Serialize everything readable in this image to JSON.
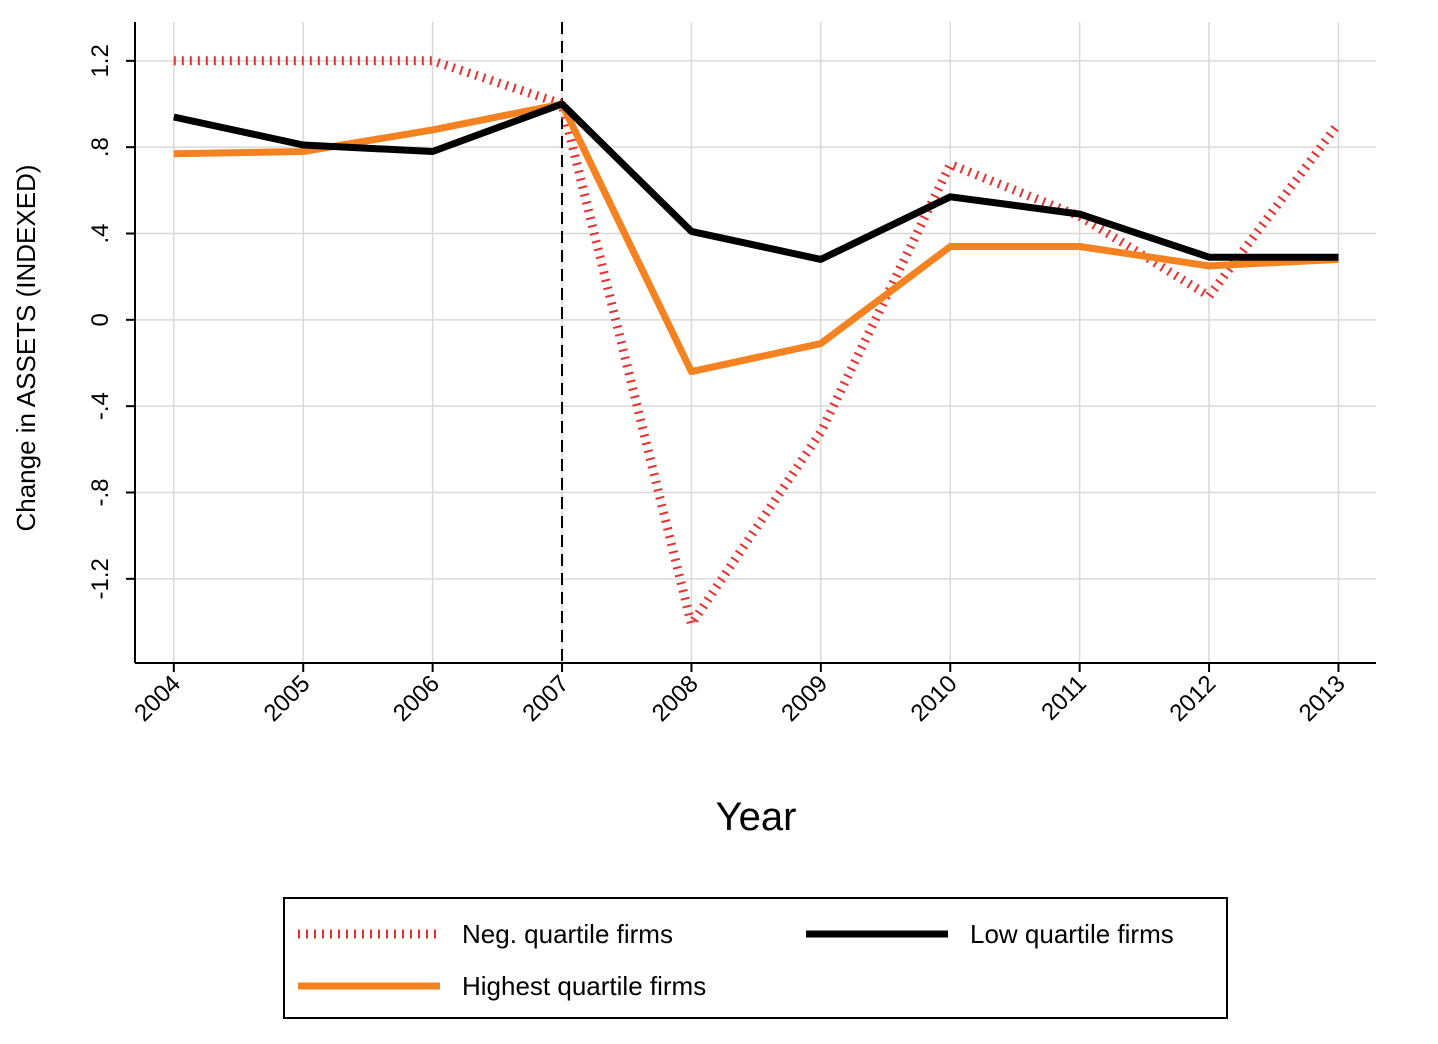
{
  "chart_data": {
    "type": "line",
    "title": "",
    "xlabel": "Year",
    "ylabel": "Change in ASSETS (INDEXED)",
    "x": [
      2004,
      2005,
      2006,
      2007,
      2008,
      2009,
      2010,
      2011,
      2012,
      2013
    ],
    "x_tick_labels": [
      "2004",
      "2005",
      "2006",
      "2007",
      "2008",
      "2009",
      "2010",
      "2011",
      "2012",
      "2013"
    ],
    "y_ticks": [
      1.2,
      0.8,
      0.4,
      0,
      -0.4,
      -0.8,
      -1.2
    ],
    "y_tick_labels": [
      "1.2",
      ".8",
      ".4",
      "0",
      "-.4",
      "-.8",
      "-1.2"
    ],
    "ylim": [
      -1.59,
      1.38
    ],
    "xlim": [
      2003.7,
      2013.29
    ],
    "grid": true,
    "reference_line_x": 2007,
    "legend_position": "bottom",
    "series": [
      {
        "name": "Neg. quartile firms",
        "color": "#e8302f",
        "style": "dotted",
        "values": [
          1.2,
          1.2,
          1.2,
          1.0,
          -1.41,
          -0.52,
          0.72,
          0.48,
          0.11,
          0.91
        ]
      },
      {
        "name": "Low quartile firms",
        "color": "#000000",
        "style": "solid",
        "values": [
          0.94,
          0.81,
          0.78,
          1.0,
          0.41,
          0.28,
          0.57,
          0.49,
          0.29,
          0.29
        ]
      },
      {
        "name": "Highest quartile firms",
        "color": "#f58220",
        "style": "solid",
        "values": [
          0.77,
          0.78,
          0.88,
          1.0,
          -0.24,
          -0.11,
          0.34,
          0.34,
          0.25,
          0.28
        ]
      }
    ]
  }
}
